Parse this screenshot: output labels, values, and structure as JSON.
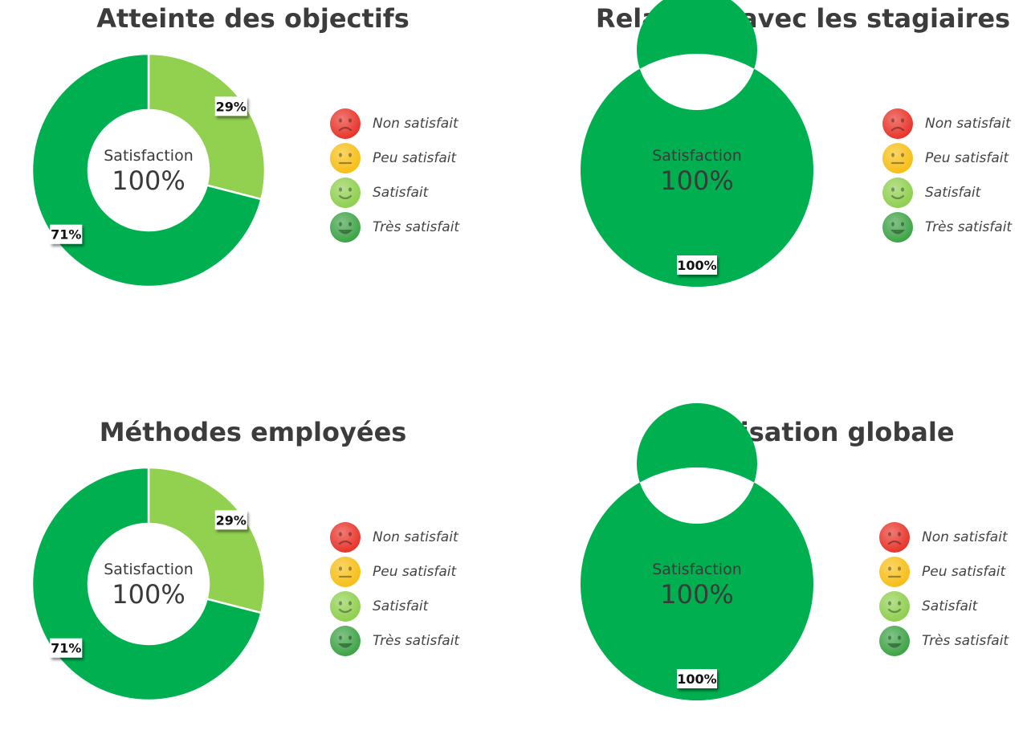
{
  "legend": [
    {
      "label": "Non satisfait",
      "icon": "sad-face-icon",
      "color": "#e8342a"
    },
    {
      "label": "Peu satisfait",
      "icon": "neutral-face-icon",
      "color": "#f7be16"
    },
    {
      "label": "Satisfait",
      "icon": "smile-face-icon",
      "color": "#8fcf4f"
    },
    {
      "label": "Très satisfait",
      "icon": "laugh-face-icon",
      "color": "#3ea346"
    }
  ],
  "chart_data": [
    {
      "type": "pie",
      "title": "Atteinte des objectifs",
      "center_label": "Satisfaction",
      "center_value": "100%",
      "categories": [
        "Non satisfait",
        "Peu satisfait",
        "Satisfait",
        "Très satisfait"
      ],
      "values": [
        0,
        0,
        29,
        71
      ],
      "slice_labels": [
        "",
        "",
        "29%",
        "71%"
      ],
      "colors": [
        "#e8342a",
        "#f7be16",
        "#92d050",
        "#00b050"
      ]
    },
    {
      "type": "pie",
      "title": "Relations avec les stagiaires",
      "center_label": "Satisfaction",
      "center_value": "100%",
      "categories": [
        "Non satisfait",
        "Peu satisfait",
        "Satisfait",
        "Très satisfait"
      ],
      "values": [
        0,
        0,
        0,
        100
      ],
      "slice_labels": [
        "",
        "",
        "",
        "100%"
      ],
      "colors": [
        "#e8342a",
        "#f7be16",
        "#92d050",
        "#00b050"
      ]
    },
    {
      "type": "pie",
      "title": "Méthodes employées",
      "center_label": "Satisfaction",
      "center_value": "100%",
      "categories": [
        "Non satisfait",
        "Peu satisfait",
        "Satisfait",
        "Très satisfait"
      ],
      "values": [
        0,
        0,
        29,
        71
      ],
      "slice_labels": [
        "",
        "",
        "29%",
        "71%"
      ],
      "colors": [
        "#e8342a",
        "#f7be16",
        "#92d050",
        "#00b050"
      ]
    },
    {
      "type": "pie",
      "title": "Organisation globale",
      "center_label": "Satisfaction",
      "center_value": "100%",
      "categories": [
        "Non satisfait",
        "Peu satisfait",
        "Satisfait",
        "Très satisfait"
      ],
      "values": [
        0,
        0,
        0,
        100
      ],
      "slice_labels": [
        "",
        "",
        "",
        "100%"
      ],
      "colors": [
        "#e8342a",
        "#f7be16",
        "#92d050",
        "#00b050"
      ]
    }
  ]
}
